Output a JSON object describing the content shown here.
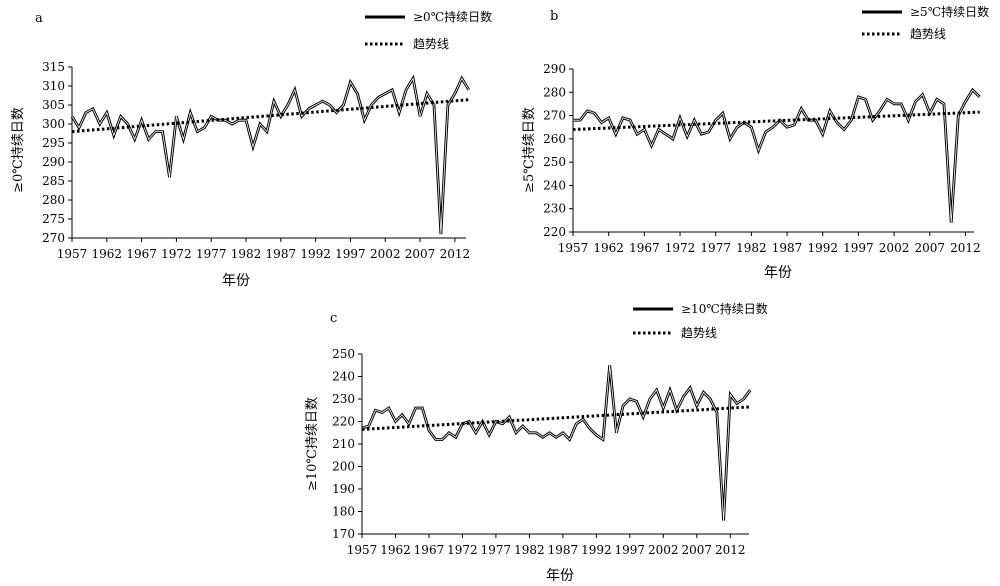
{
  "chart_data": [
    {
      "type": "line",
      "panel_label": "a",
      "ylabel": "≥0℃持续日数",
      "xlabel": "年份",
      "ylim": [
        270,
        315
      ],
      "yticks": [
        270,
        275,
        280,
        285,
        290,
        295,
        300,
        305,
        310,
        315
      ],
      "xticks": [
        1957,
        1962,
        1967,
        1972,
        1977,
        1982,
        1987,
        1992,
        1997,
        2002,
        2007,
        2012
      ],
      "grid": false,
      "legend_placement": "top-right",
      "series": [
        {
          "name": "≥0℃持续日数",
          "style": "solid",
          "x": [
            1957,
            1958,
            1959,
            1960,
            1961,
            1962,
            1963,
            1964,
            1965,
            1966,
            1967,
            1968,
            1969,
            1970,
            1971,
            1972,
            1973,
            1974,
            1975,
            1976,
            1977,
            1978,
            1979,
            1980,
            1981,
            1982,
            1983,
            1984,
            1985,
            1986,
            1987,
            1988,
            1989,
            1990,
            1991,
            1992,
            1993,
            1994,
            1995,
            1996,
            1997,
            1998,
            1999,
            2000,
            2001,
            2002,
            2003,
            2004,
            2005,
            2006,
            2007,
            2008,
            2009,
            2010,
            2011,
            2012,
            2013,
            2014
          ],
          "values": [
            302,
            299,
            303,
            304,
            300,
            303,
            297,
            302,
            300,
            296,
            301,
            296,
            298,
            298,
            286,
            302,
            296,
            303,
            298,
            299,
            302,
            301,
            301,
            300,
            301,
            301,
            294,
            300,
            298,
            306,
            302,
            305,
            309,
            302,
            304,
            305,
            306,
            305,
            303,
            305,
            311,
            308,
            301,
            305,
            307,
            308,
            309,
            303,
            309,
            312,
            302,
            308,
            305,
            271,
            305,
            308,
            312,
            309
          ]
        },
        {
          "name": "趋势线",
          "style": "dotted",
          "x": [
            1957,
            2014
          ],
          "values": [
            298.0,
            306.4
          ]
        }
      ]
    },
    {
      "type": "line",
      "panel_label": "b",
      "ylabel": "≥5℃持续日数",
      "xlabel": "年份",
      "ylim": [
        220,
        290
      ],
      "yticks": [
        220,
        230,
        240,
        250,
        260,
        270,
        280,
        290
      ],
      "xticks": [
        1957,
        1962,
        1967,
        1972,
        1977,
        1982,
        1987,
        1992,
        1997,
        2002,
        2007,
        2012
      ],
      "grid": false,
      "legend_placement": "top-right",
      "series": [
        {
          "name": "≥5℃持续日数",
          "style": "solid",
          "x": [
            1957,
            1958,
            1959,
            1960,
            1961,
            1962,
            1963,
            1964,
            1965,
            1966,
            1967,
            1968,
            1969,
            1970,
            1971,
            1972,
            1973,
            1974,
            1975,
            1976,
            1977,
            1978,
            1979,
            1980,
            1981,
            1982,
            1983,
            1984,
            1985,
            1986,
            1987,
            1988,
            1989,
            1990,
            1991,
            1992,
            1993,
            1994,
            1995,
            1996,
            1997,
            1998,
            1999,
            2000,
            2001,
            2002,
            2003,
            2004,
            2005,
            2006,
            2007,
            2008,
            2009,
            2010,
            2011,
            2012,
            2013,
            2014
          ],
          "values": [
            268,
            268,
            272,
            271,
            267,
            269,
            262,
            269,
            268,
            262,
            264,
            257,
            264,
            262,
            260,
            269,
            261,
            268,
            262,
            263,
            268,
            271,
            260,
            265,
            267,
            265,
            255,
            263,
            265,
            268,
            265,
            266,
            273,
            268,
            268,
            262,
            272,
            267,
            264,
            268,
            278,
            277,
            268,
            272,
            277,
            275,
            275,
            268,
            276,
            279,
            271,
            277,
            275,
            224,
            270,
            276,
            281,
            278
          ]
        },
        {
          "name": "趋势线",
          "style": "dotted",
          "x": [
            1957,
            2014
          ],
          "values": [
            264.0,
            271.5
          ]
        }
      ]
    },
    {
      "type": "line",
      "panel_label": "c",
      "ylabel": "≥10℃持续日数",
      "xlabel": "年份",
      "ylim": [
        170,
        250
      ],
      "yticks": [
        170,
        180,
        190,
        200,
        210,
        220,
        230,
        240,
        250
      ],
      "xticks": [
        1957,
        1962,
        1967,
        1972,
        1977,
        1982,
        1987,
        1992,
        1997,
        2002,
        2007,
        2012
      ],
      "grid": false,
      "legend_placement": "top",
      "series": [
        {
          "name": "≥10℃持续日数",
          "style": "solid",
          "x": [
            1957,
            1958,
            1959,
            1960,
            1961,
            1962,
            1963,
            1964,
            1965,
            1966,
            1967,
            1968,
            1969,
            1970,
            1971,
            1972,
            1973,
            1974,
            1975,
            1976,
            1977,
            1978,
            1979,
            1980,
            1981,
            1982,
            1983,
            1984,
            1985,
            1986,
            1987,
            1988,
            1989,
            1990,
            1991,
            1992,
            1993,
            1994,
            1995,
            1996,
            1997,
            1998,
            1999,
            2000,
            2001,
            2002,
            2003,
            2004,
            2005,
            2006,
            2007,
            2008,
            2009,
            2010,
            2011,
            2012,
            2013,
            2014,
            2015
          ],
          "values": [
            217,
            218,
            225,
            224,
            226,
            220,
            223,
            219,
            226,
            226,
            216,
            212,
            212,
            215,
            213,
            219,
            220,
            215,
            220,
            214,
            220,
            219,
            222,
            215,
            218,
            215,
            215,
            213,
            215,
            213,
            215,
            212,
            219,
            221,
            217,
            214,
            212,
            245,
            215,
            227,
            230,
            229,
            222,
            230,
            234,
            226,
            234,
            225,
            231,
            235,
            227,
            233,
            230,
            224,
            176,
            232,
            228,
            230,
            234
          ]
        },
        {
          "name": "趋势线",
          "style": "dotted",
          "x": [
            1957,
            2015
          ],
          "values": [
            216.5,
            226.5
          ]
        }
      ]
    }
  ]
}
